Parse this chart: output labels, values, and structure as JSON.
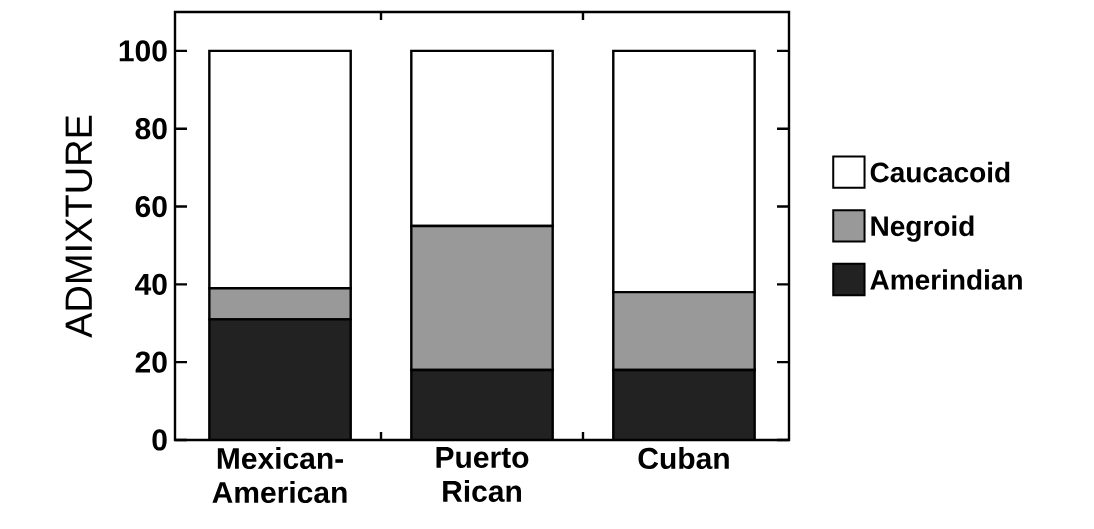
{
  "chart_data": {
    "type": "bar",
    "stacked": true,
    "ylabel": "ADMIXTURE",
    "categories": [
      "Mexican-American",
      "Puerto Rican",
      "Cuban"
    ],
    "ylim": [
      0,
      110
    ],
    "yticks": [
      0,
      20,
      40,
      60,
      80,
      100
    ],
    "legend": "right",
    "series": [
      {
        "name": "Amerindian",
        "color": "#222222",
        "values": [
          31,
          18,
          18
        ]
      },
      {
        "name": "Negroid",
        "color": "#999999",
        "values": [
          8,
          37,
          20
        ]
      },
      {
        "name": "Caucacoid",
        "color": "#ffffff",
        "values": [
          61,
          45,
          62
        ]
      }
    ]
  }
}
